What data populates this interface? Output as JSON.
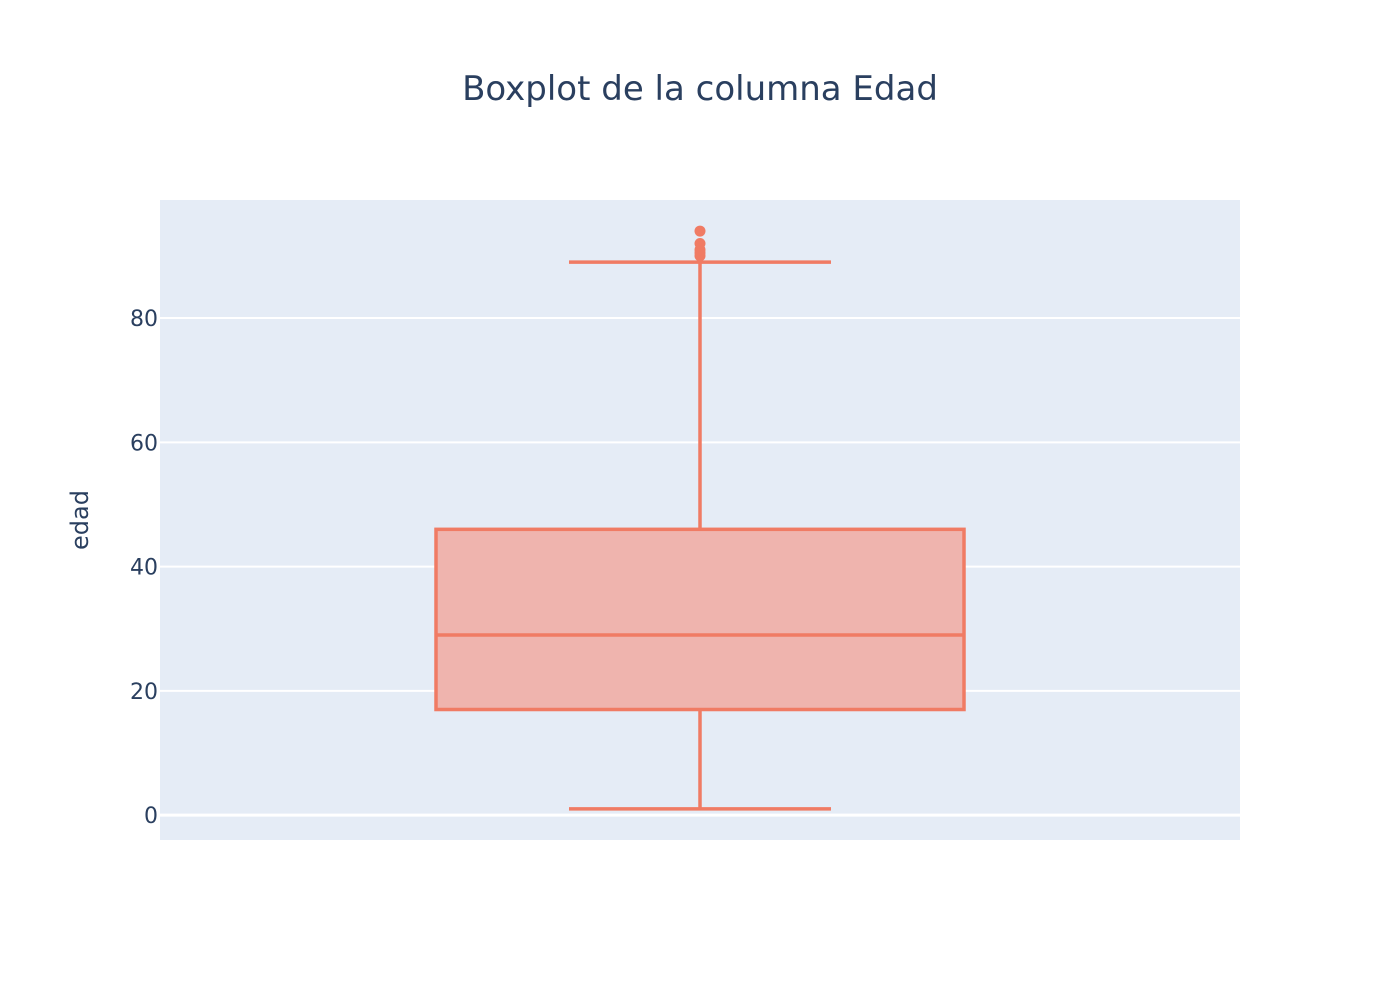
{
  "chart_data": {
    "type": "box",
    "title": "Boxplot de la columna Edad",
    "xlabel": "",
    "ylabel": "edad",
    "ylim": [
      -4,
      99
    ],
    "yticks": [
      0,
      20,
      40,
      60,
      80
    ],
    "ytick_labels": [
      "0",
      "20",
      "40",
      "60",
      "80"
    ],
    "grid": true,
    "legend": "none",
    "series": [
      {
        "lowerfence": 1,
        "q1": 17,
        "median": 29,
        "q3": 46,
        "upperfence": 89,
        "outliers": [
          90,
          90.5,
          91,
          92,
          94
        ]
      }
    ],
    "colors": {
      "line": "#f07b64",
      "fill": "#efb4ae",
      "plot_bg": "#e5ecf6",
      "grid": "#ffffff",
      "text": "#2a3f5f"
    }
  }
}
